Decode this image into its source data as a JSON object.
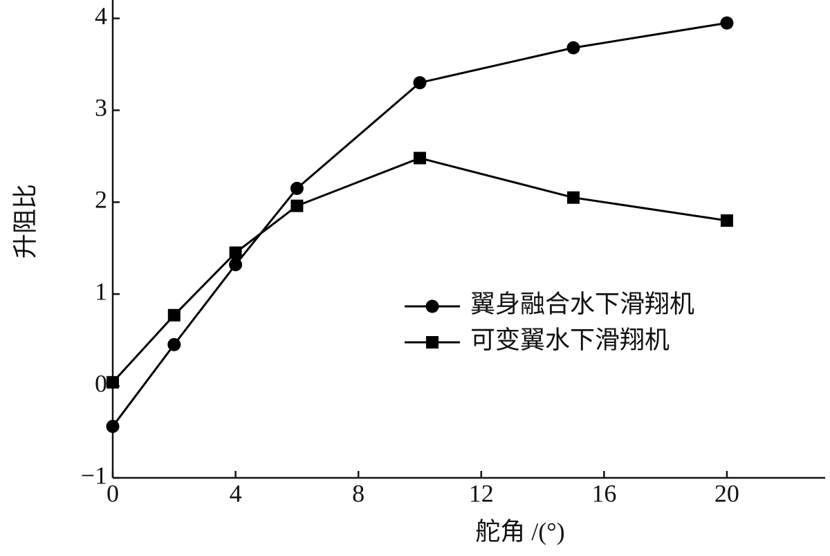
{
  "chart_data": {
    "type": "line",
    "x_label": "舵角 /(°)",
    "y_label": "升阻比",
    "x": [
      0,
      2,
      4,
      6,
      10,
      15,
      20
    ],
    "series": [
      {
        "name": "翼身融合水下滑翔机",
        "color": "#000000",
        "marker": "circle",
        "values": [
          -0.44,
          0.45,
          1.32,
          2.15,
          3.3,
          3.68,
          3.95
        ]
      },
      {
        "name": "可变翼水下滑翔机",
        "color": "#000000",
        "marker": "square",
        "values": [
          0.04,
          0.77,
          1.45,
          1.96,
          2.48,
          2.05,
          1.8
        ]
      }
    ],
    "xlim": [
      0,
      23.2
    ],
    "ylim": [
      -1,
      4.2
    ],
    "xticks": [
      0,
      4,
      8,
      12,
      16,
      20
    ],
    "yticks": [
      {
        "value": -1,
        "label": "−1"
      },
      0,
      1,
      2,
      3,
      4
    ],
    "grid": false
  }
}
